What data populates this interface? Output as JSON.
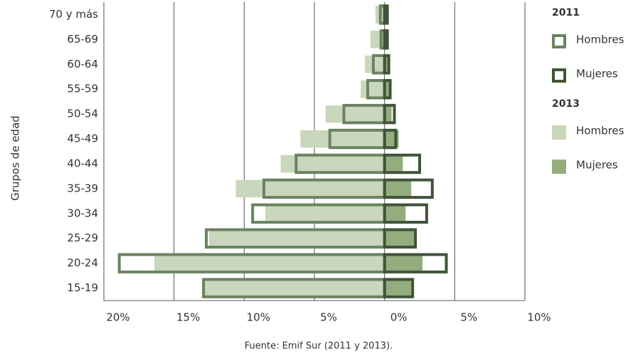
{
  "chart_data": {
    "type": "pyramid",
    "y_label": "Grupos de edad",
    "source": "Fuente: Emif Sur (2011 y 2013).",
    "categories": [
      "15-19",
      "20-24",
      "25-29",
      "30-34",
      "35-39",
      "40-44",
      "45-49",
      "50-54",
      "55-59",
      "60-64",
      "65-69",
      "70 y más"
    ],
    "xlim": [
      -20,
      10
    ],
    "xticks": [
      {
        "value": -20,
        "label": "20%"
      },
      {
        "value": -15,
        "label": "15%"
      },
      {
        "value": -10,
        "label": "10%"
      },
      {
        "value": -5,
        "label": "5%"
      },
      {
        "value": 0,
        "label": "0%"
      },
      {
        "value": 5,
        "label": "5%"
      },
      {
        "value": 10,
        "label": "10%"
      }
    ],
    "grid": true,
    "series_groups": [
      {
        "title": "2013",
        "series": [
          {
            "name": "Hombres",
            "style": "fill",
            "color": "#c9d7bd",
            "values": [
              -12.9,
              -16.4,
              -12.5,
              -8.5,
              -10.6,
              -7.4,
              -6.0,
              -4.2,
              -1.7,
              -1.4,
              -1.0,
              -0.65
            ]
          },
          {
            "name": "Mujeres",
            "style": "fill",
            "color": "#93ad7f",
            "values": [
              1.9,
              2.7,
              2.1,
              1.5,
              1.9,
              1.3,
              1.0,
              0.5,
              0.4,
              0.4,
              0.3,
              0.2
            ]
          }
        ]
      },
      {
        "title": "2011",
        "series": [
          {
            "name": "Hombres",
            "style": "outline",
            "color": "#6a8360",
            "values": [
              -12.9,
              -18.9,
              -12.7,
              -9.4,
              -8.6,
              -6.3,
              -3.9,
              -2.9,
              -1.2,
              -0.8,
              -0.25,
              -0.3
            ]
          },
          {
            "name": "Mujeres",
            "style": "outline",
            "color": "#3f5438",
            "values": [
              2.0,
              4.4,
              2.2,
              3.0,
              3.4,
              2.5,
              0.8,
              0.7,
              0.4,
              0.3,
              0.2,
              0.2
            ]
          }
        ]
      }
    ]
  }
}
